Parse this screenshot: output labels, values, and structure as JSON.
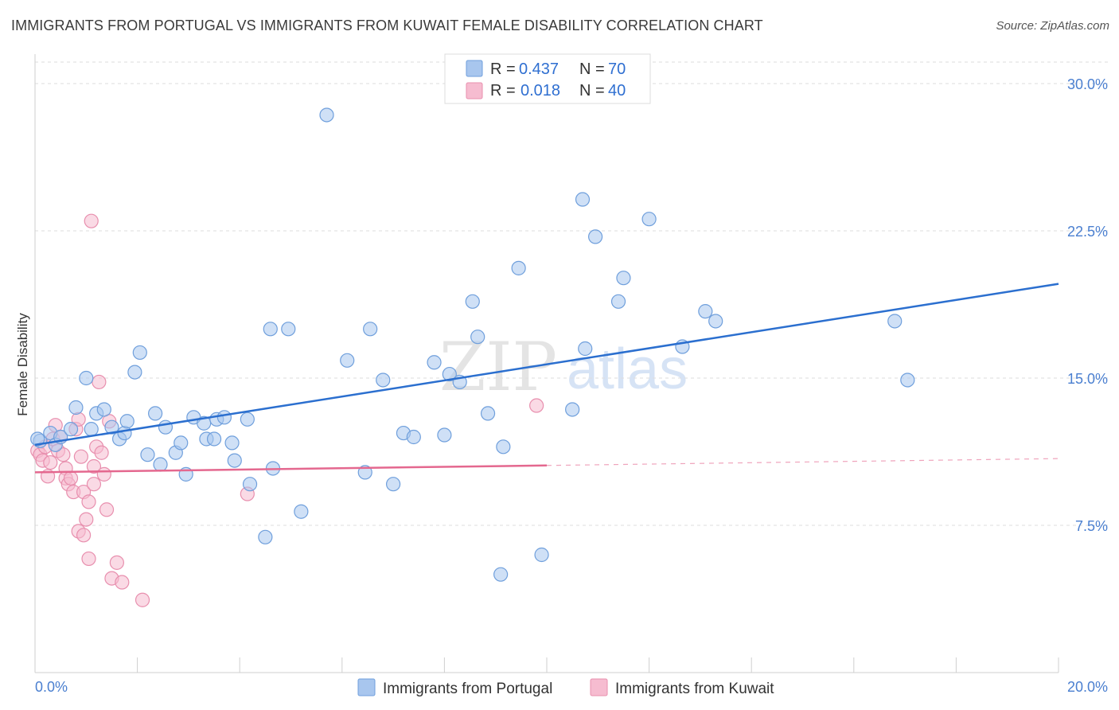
{
  "title": "IMMIGRANTS FROM PORTUGAL VS IMMIGRANTS FROM KUWAIT FEMALE DISABILITY CORRELATION CHART",
  "source": "Source: ZipAtlas.com",
  "watermark": {
    "part1": "ZIP",
    "part2": "atlas"
  },
  "colors": {
    "portugal_fill": "#a8c6ee",
    "portugal_stroke": "#6f9fdc",
    "portugal_line": "#2b6fcf",
    "kuwait_fill": "#f6bcd0",
    "kuwait_stroke": "#e88fae",
    "kuwait_line": "#e4688f",
    "grid": "#dedede",
    "tick_label": "#4a7fd0"
  },
  "legend": {
    "rows": [
      {
        "r_label": "R =",
        "r_value": "0.437",
        "n_label": "N =",
        "n_value": "70"
      },
      {
        "r_label": "R =",
        "r_value": "0.018",
        "n_label": "N =",
        "n_value": "40"
      }
    ]
  },
  "chart_data": {
    "type": "scatter",
    "title": "IMMIGRANTS FROM PORTUGAL VS IMMIGRANTS FROM KUWAIT FEMALE DISABILITY CORRELATION CHART",
    "xlabel": "",
    "ylabel": "Female Disability",
    "xlim": [
      0,
      20
    ],
    "ylim": [
      0,
      31.5
    ],
    "x_tick_labels": [
      "0.0%",
      "20.0%"
    ],
    "y_ticks": [
      7.5,
      15.0,
      22.5,
      30.0
    ],
    "y_tick_labels": [
      "7.5%",
      "15.0%",
      "22.5%",
      "30.0%"
    ],
    "grid": true,
    "series": [
      {
        "name": "Immigrants from Portugal",
        "R": 0.437,
        "N": 70,
        "trend": {
          "x0": 0.0,
          "y0": 11.6,
          "x1": 20.0,
          "y1": 19.8,
          "dashed_from": null
        },
        "points": [
          [
            0.1,
            11.8
          ],
          [
            0.3,
            12.2
          ],
          [
            0.4,
            11.6
          ],
          [
            0.5,
            12.0
          ],
          [
            0.7,
            12.4
          ],
          [
            0.8,
            13.5
          ],
          [
            1.0,
            15.0
          ],
          [
            1.1,
            12.4
          ],
          [
            1.2,
            13.2
          ],
          [
            1.35,
            13.4
          ],
          [
            1.5,
            12.5
          ],
          [
            1.65,
            11.9
          ],
          [
            1.75,
            12.2
          ],
          [
            1.8,
            12.8
          ],
          [
            1.95,
            15.3
          ],
          [
            2.05,
            16.3
          ],
          [
            2.2,
            11.1
          ],
          [
            2.35,
            13.2
          ],
          [
            2.45,
            10.6
          ],
          [
            2.55,
            12.5
          ],
          [
            2.75,
            11.2
          ],
          [
            2.85,
            11.7
          ],
          [
            2.95,
            10.1
          ],
          [
            3.1,
            13.0
          ],
          [
            3.3,
            12.7
          ],
          [
            3.35,
            11.9
          ],
          [
            3.5,
            11.9
          ],
          [
            3.55,
            12.9
          ],
          [
            3.7,
            13.0
          ],
          [
            3.85,
            11.7
          ],
          [
            3.9,
            10.8
          ],
          [
            4.15,
            12.9
          ],
          [
            4.2,
            9.6
          ],
          [
            4.5,
            6.9
          ],
          [
            4.6,
            17.5
          ],
          [
            4.65,
            10.4
          ],
          [
            4.95,
            17.5
          ],
          [
            5.2,
            8.2
          ],
          [
            5.7,
            28.4
          ],
          [
            6.1,
            15.9
          ],
          [
            6.45,
            10.2
          ],
          [
            6.55,
            17.5
          ],
          [
            6.8,
            14.9
          ],
          [
            7.0,
            9.6
          ],
          [
            7.2,
            12.2
          ],
          [
            7.4,
            12.0
          ],
          [
            7.8,
            15.8
          ],
          [
            8.0,
            12.1
          ],
          [
            8.1,
            15.2
          ],
          [
            8.3,
            14.8
          ],
          [
            8.55,
            18.9
          ],
          [
            8.65,
            17.1
          ],
          [
            8.85,
            13.2
          ],
          [
            9.1,
            5.0
          ],
          [
            9.15,
            11.5
          ],
          [
            9.45,
            20.6
          ],
          [
            9.9,
            6.0
          ],
          [
            10.5,
            13.4
          ],
          [
            10.7,
            24.1
          ],
          [
            10.75,
            16.5
          ],
          [
            10.95,
            22.2
          ],
          [
            11.4,
            18.9
          ],
          [
            11.5,
            20.1
          ],
          [
            12.0,
            23.1
          ],
          [
            12.65,
            16.6
          ],
          [
            13.1,
            18.4
          ],
          [
            13.3,
            17.9
          ],
          [
            16.8,
            17.9
          ],
          [
            17.05,
            14.9
          ],
          [
            0.05,
            11.9
          ]
        ]
      },
      {
        "name": "Immigrants from Kuwait",
        "R": 0.018,
        "N": 40,
        "trend": {
          "x0": 0.0,
          "y0": 10.2,
          "x1": 20.0,
          "y1": 10.9,
          "dashed_from": 10.0
        },
        "points": [
          [
            0.05,
            11.3
          ],
          [
            0.1,
            11.1
          ],
          [
            0.15,
            10.8
          ],
          [
            0.2,
            11.5
          ],
          [
            0.25,
            10.0
          ],
          [
            0.3,
            10.7
          ],
          [
            0.35,
            11.9
          ],
          [
            0.4,
            12.6
          ],
          [
            0.45,
            11.3
          ],
          [
            0.5,
            12.0
          ],
          [
            0.55,
            11.1
          ],
          [
            0.6,
            10.4
          ],
          [
            0.6,
            9.9
          ],
          [
            0.65,
            9.6
          ],
          [
            0.7,
            9.9
          ],
          [
            0.75,
            9.2
          ],
          [
            0.8,
            12.4
          ],
          [
            0.85,
            7.2
          ],
          [
            0.85,
            12.9
          ],
          [
            0.9,
            11.0
          ],
          [
            0.95,
            9.2
          ],
          [
            0.95,
            7.0
          ],
          [
            1.0,
            7.8
          ],
          [
            1.05,
            8.7
          ],
          [
            1.05,
            5.8
          ],
          [
            1.1,
            23.0
          ],
          [
            1.15,
            10.5
          ],
          [
            1.15,
            9.6
          ],
          [
            1.2,
            11.5
          ],
          [
            1.25,
            14.8
          ],
          [
            1.3,
            11.2
          ],
          [
            1.35,
            10.1
          ],
          [
            1.4,
            8.3
          ],
          [
            1.45,
            12.8
          ],
          [
            1.5,
            4.8
          ],
          [
            1.6,
            5.6
          ],
          [
            1.7,
            4.6
          ],
          [
            2.1,
            3.7
          ],
          [
            4.15,
            9.1
          ],
          [
            9.8,
            13.6
          ]
        ]
      }
    ]
  },
  "bottom_legend": {
    "items": [
      {
        "label": "Immigrants from Portugal"
      },
      {
        "label": "Immigrants from Kuwait"
      }
    ]
  }
}
